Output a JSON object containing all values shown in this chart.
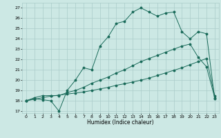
{
  "title": "",
  "xlabel": "Humidex (Indice chaleur)",
  "xlim": [
    -0.5,
    23.5
  ],
  "ylim": [
    16.8,
    27.5
  ],
  "xticks": [
    0,
    1,
    2,
    3,
    4,
    5,
    6,
    7,
    8,
    9,
    10,
    11,
    12,
    13,
    14,
    15,
    16,
    17,
    18,
    19,
    20,
    21,
    22,
    23
  ],
  "yticks": [
    17,
    18,
    19,
    20,
    21,
    22,
    23,
    24,
    25,
    26,
    27
  ],
  "bg_color": "#cce8e4",
  "grid_color": "#aaccca",
  "line_color": "#1a6b5a",
  "line1_x": [
    0,
    1,
    2,
    3,
    4,
    5,
    6,
    7,
    8,
    9,
    10,
    11,
    12,
    13,
    14,
    15,
    16,
    17,
    18,
    19,
    20,
    21,
    22,
    23
  ],
  "line1_y": [
    18.0,
    18.2,
    18.1,
    18.0,
    17.0,
    19.0,
    20.0,
    21.2,
    21.0,
    23.3,
    24.2,
    25.5,
    25.7,
    26.6,
    27.0,
    26.6,
    26.2,
    26.5,
    26.6,
    24.7,
    24.0,
    24.7,
    24.5,
    18.2
  ],
  "line2_x": [
    0,
    1,
    2,
    3,
    4,
    5,
    6,
    7,
    8,
    9,
    10,
    11,
    12,
    13,
    14,
    15,
    16,
    17,
    18,
    19,
    20,
    21,
    22,
    23
  ],
  "line2_y": [
    18.0,
    18.3,
    18.5,
    18.5,
    18.5,
    18.8,
    19.0,
    19.3,
    19.7,
    20.0,
    20.3,
    20.7,
    21.0,
    21.4,
    21.8,
    22.1,
    22.4,
    22.7,
    23.0,
    23.3,
    23.5,
    22.2,
    21.3,
    18.3
  ],
  "line3_x": [
    0,
    1,
    2,
    3,
    4,
    5,
    6,
    7,
    8,
    9,
    10,
    11,
    12,
    13,
    14,
    15,
    16,
    17,
    18,
    19,
    20,
    21,
    22,
    23
  ],
  "line3_y": [
    18.0,
    18.15,
    18.3,
    18.45,
    18.55,
    18.65,
    18.75,
    18.85,
    19.0,
    19.15,
    19.3,
    19.5,
    19.65,
    19.82,
    20.0,
    20.2,
    20.45,
    20.7,
    20.95,
    21.2,
    21.5,
    21.8,
    22.1,
    18.5
  ]
}
